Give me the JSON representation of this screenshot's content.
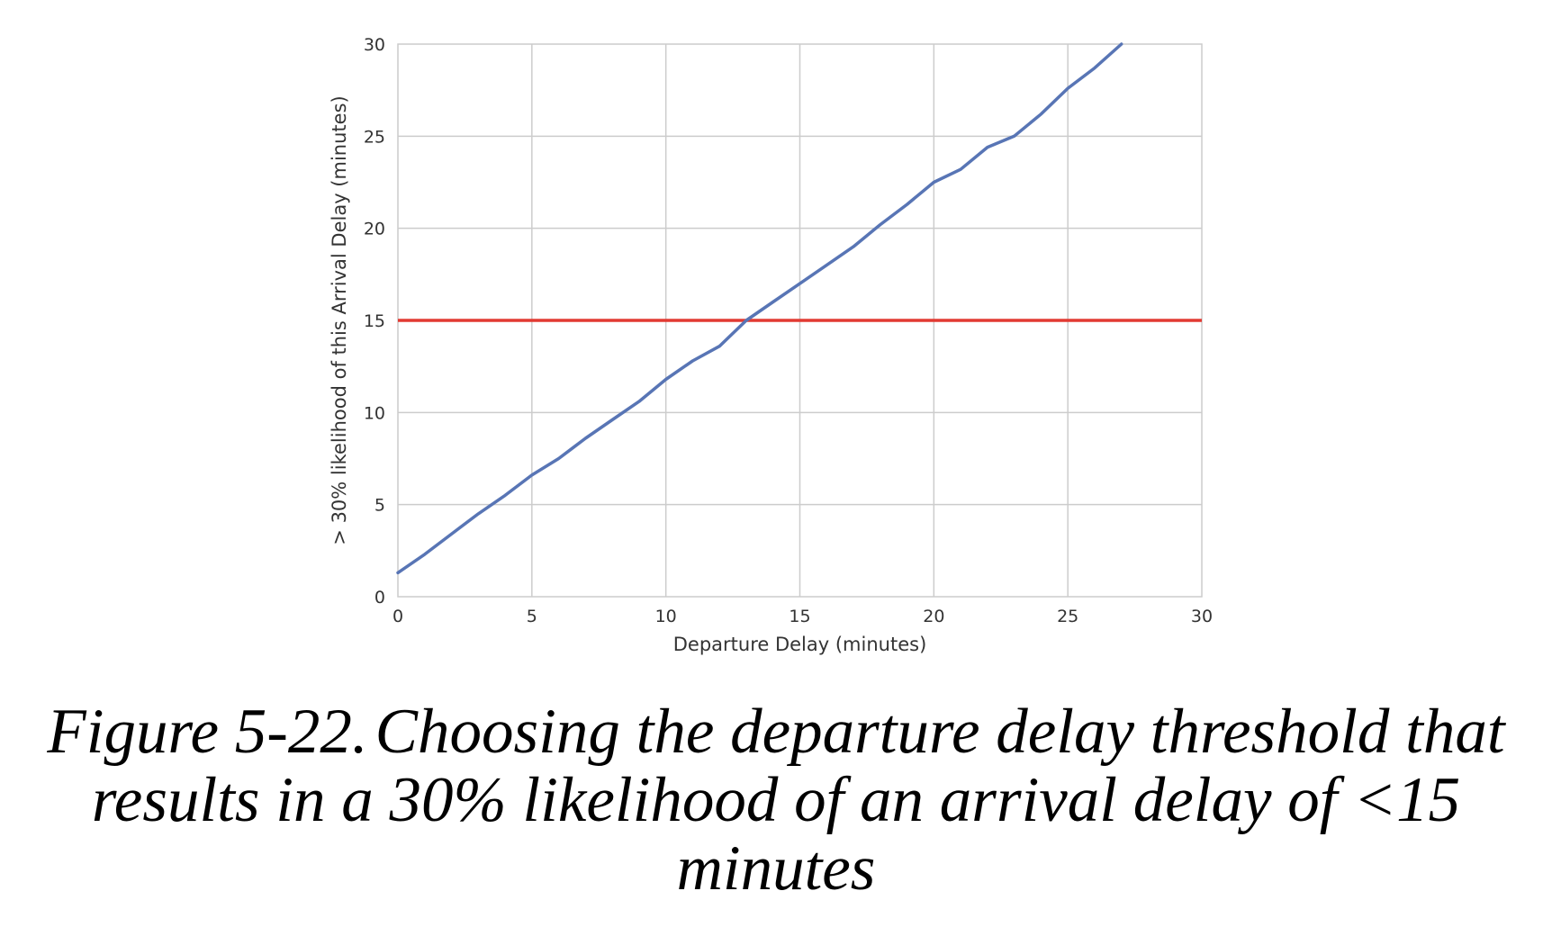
{
  "chart_data": {
    "type": "line",
    "xlabel": "Departure Delay (minutes)",
    "ylabel": "> 30% likelihood of this Arrival Delay (minutes)",
    "xlim": [
      0,
      30
    ],
    "ylim": [
      0,
      30
    ],
    "xticks": [
      "0",
      "5",
      "10",
      "15",
      "20",
      "25",
      "30"
    ],
    "yticks": [
      "0",
      "5",
      "10",
      "15",
      "20",
      "25",
      "30"
    ],
    "grid": true,
    "legend": "none",
    "series": [
      {
        "color": "#5875b5",
        "x": [
          0,
          1,
          2,
          3,
          4,
          5,
          6,
          7,
          8,
          9,
          10,
          11,
          12,
          13,
          14,
          15,
          16,
          17,
          18,
          19,
          20,
          21,
          22,
          23,
          24,
          25,
          26,
          27
        ],
        "y": [
          1.3,
          2.3,
          3.4,
          4.5,
          5.5,
          6.6,
          7.5,
          8.6,
          9.6,
          10.6,
          11.8,
          12.8,
          13.6,
          15.0,
          16.0,
          17.0,
          18.0,
          19.0,
          20.2,
          21.3,
          22.5,
          23.2,
          24.4,
          25.0,
          26.2,
          27.6,
          28.7,
          30.0
        ]
      }
    ],
    "threshold": {
      "y": 15,
      "color": "#e23a32"
    }
  },
  "caption": {
    "figure_number": "Figure 5-22.",
    "text": "Choosing the departure delay threshold that results in a 30% likelihood of an arrival delay of <15 minutes"
  }
}
